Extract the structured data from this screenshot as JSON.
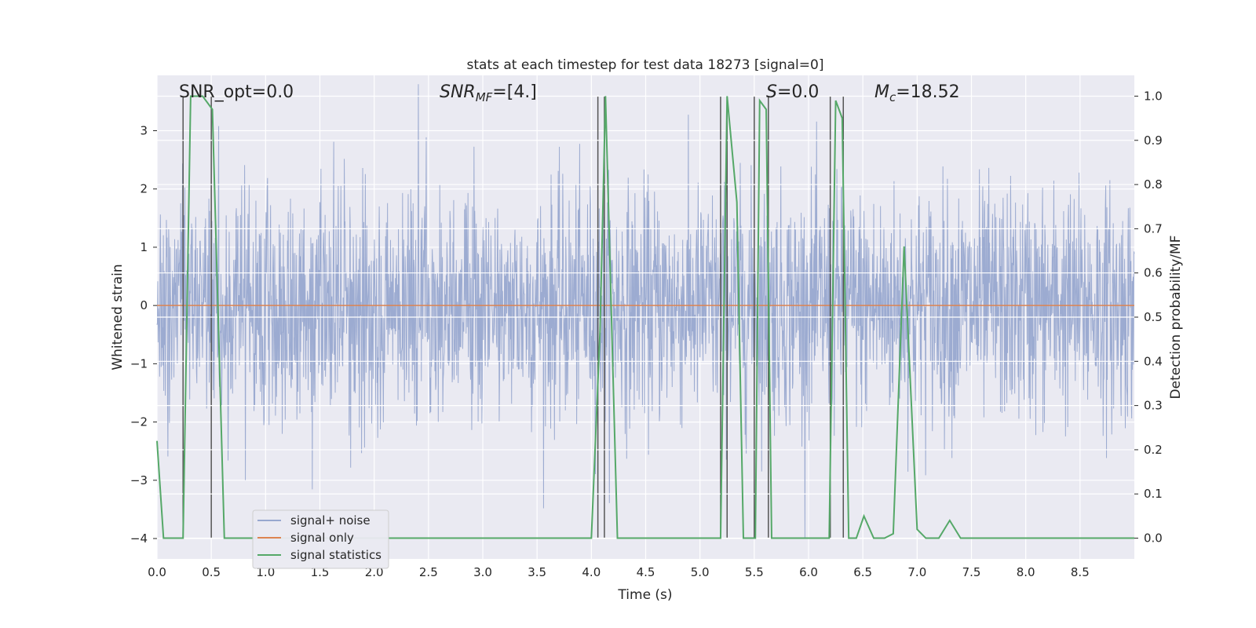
{
  "chart_data": {
    "type": "line",
    "title": "stats at each timestep for test data 18273 [signal=0]",
    "xlabel": "Time (s)",
    "ylabel": "Whitened strain",
    "y2label": "Detection probability/MF",
    "xlim": [
      0.0,
      9.0
    ],
    "ylim": [
      -4.35,
      3.95
    ],
    "y2lim": [
      -0.047,
      1.047
    ],
    "xticks": [
      "0.0",
      "0.5",
      "1.0",
      "1.5",
      "2.0",
      "2.5",
      "3.0",
      "3.5",
      "4.0",
      "4.5",
      "5.0",
      "5.5",
      "6.0",
      "6.5",
      "7.0",
      "7.5",
      "8.0",
      "8.5"
    ],
    "xtick_values": [
      0.0,
      0.5,
      1.0,
      1.5,
      2.0,
      2.5,
      3.0,
      3.5,
      4.0,
      4.5,
      5.0,
      5.5,
      6.0,
      6.5,
      7.0,
      7.5,
      8.0,
      8.5
    ],
    "yticks": [
      "3",
      "2",
      "1",
      "0",
      "−1",
      "−2",
      "−3",
      "−4"
    ],
    "ytick_values": [
      3,
      2,
      1,
      0,
      -1,
      -2,
      -3,
      -4
    ],
    "y2ticks": [
      "1.0",
      "0.9",
      "0.8",
      "0.7",
      "0.6",
      "0.5",
      "0.4",
      "0.3",
      "0.2",
      "0.1",
      "0.0"
    ],
    "y2tick_values": [
      1.0,
      0.9,
      0.8,
      0.7,
      0.6,
      0.5,
      0.4,
      0.3,
      0.2,
      0.1,
      0.0
    ],
    "grid": true,
    "legend_position": "lower-left",
    "annotations": {
      "snr_opt": "SNR_opt=0.0",
      "snr_mf_main": "SNR",
      "snr_mf_sub": "MF",
      "snr_mf_rest": "=[4.]",
      "s_label": "S",
      "s_value": "=0.0",
      "mc_main": "M",
      "mc_sub": "c",
      "mc_value": "=18.52"
    },
    "series": [
      {
        "name": "signal+ noise",
        "color": "#98a8cf",
        "description": "whitened strain noise, approx. Gaussian with std ~1",
        "noise_std": 1.0
      },
      {
        "name": "signal only",
        "color": "#dd8452",
        "values_constant": 0.0
      },
      {
        "name": "signal statistics",
        "color": "#55a868",
        "axis": "right",
        "x": [
          0.0,
          0.06,
          0.18,
          0.24,
          0.31,
          0.42,
          0.51,
          0.62,
          1.0,
          2.0,
          3.0,
          4.0,
          4.08,
          4.13,
          4.24,
          4.3,
          4.5,
          5.0,
          5.19,
          5.25,
          5.34,
          5.4,
          5.51,
          5.55,
          5.61,
          5.66,
          6.0,
          6.19,
          6.25,
          6.31,
          6.37,
          6.44,
          6.51,
          6.6,
          6.7,
          6.78,
          6.88,
          7.0,
          7.08,
          7.2,
          7.3,
          7.4,
          7.5,
          8.0,
          9.0
        ],
        "y": [
          0.22,
          0.0,
          0.0,
          0.0,
          1.0,
          1.0,
          0.97,
          0.0,
          0.0,
          0.0,
          0.0,
          0.0,
          0.47,
          1.0,
          0.0,
          0.0,
          0.0,
          0.0,
          0.0,
          1.0,
          0.76,
          0.0,
          0.0,
          0.99,
          0.97,
          0.0,
          0.0,
          0.0,
          0.99,
          0.95,
          0.0,
          0.0,
          0.05,
          0.0,
          0.0,
          0.01,
          0.66,
          0.02,
          0.0,
          0.0,
          0.04,
          0.0,
          0.0,
          0.0,
          0.0
        ]
      }
    ],
    "vertical_lines_x": [
      0.24,
      0.5,
      4.06,
      4.12,
      5.19,
      5.25,
      5.5,
      5.63,
      6.2,
      6.32
    ]
  },
  "legend": {
    "noise_label": "signal+ noise",
    "signal_label": "signal only",
    "stats_label": "signal statistics"
  }
}
